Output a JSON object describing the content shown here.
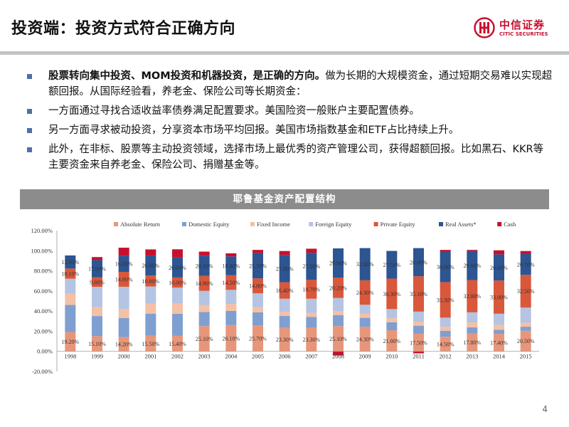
{
  "header": {
    "title": "投资端：投资方式符合正确方向",
    "logo_cn": "中信证券",
    "logo_en": "CITIC SECURITIES"
  },
  "bullets": [
    {
      "bold": "股票转向集中投资、MOM投资和机器投资，是正确的方向。",
      "text": "做为长期的大规模资金，通过短期交易难以实现超额回报。从国际经验看，养老金、保险公司等长期资金："
    },
    {
      "bold": "",
      "text": "一方面通过寻找合适收益率债券满足配置要求。美国险资一般账户主要配置债券。"
    },
    {
      "bold": "",
      "text": "另一方面寻求被动投资，分享资本市场平均回报。美国市场指数基金和ETF占比持续上升。"
    },
    {
      "bold": "",
      "text": "此外，在非标、股票等主动投资领域，选择市场上最优秀的资产管理公司，获得超额回报。比如黑石、KKR等主要资金来自养老金、保险公司、捐赠基金等。"
    }
  ],
  "chart_banner": "耶鲁基金资产配置结构",
  "page_number": "4",
  "chart_data": {
    "type": "bar",
    "stacked": true,
    "title": "",
    "xlabel": "",
    "ylabel": "",
    "ylim": [
      -20,
      120
    ],
    "yticks": [
      "-20.00%",
      "0.00%",
      "20.00%",
      "40.00%",
      "60.00%",
      "80.00%",
      "100.00%",
      "120.00%"
    ],
    "grid": false,
    "legend_position": "top",
    "categories": [
      "1998",
      "1999",
      "2000",
      "2001",
      "2002",
      "2003",
      "2004",
      "2005",
      "2006",
      "2007",
      "2008",
      "2009",
      "2010",
      "2011",
      "2012",
      "2013",
      "2014",
      "2015"
    ],
    "series": [
      {
        "name": "Absolute Return",
        "color": "#e8967a",
        "values": [
          19.2,
          15.1,
          14.2,
          15.5,
          15.4,
          25.1,
          26.1,
          25.7,
          23.3,
          23.3,
          25.1,
          24.3,
          21.0,
          17.5,
          14.5,
          17.8,
          17.4,
          20.5
        ]
      },
      {
        "name": "Domestic Equity",
        "color": "#7f9fd0",
        "values": [
          27,
          20,
          19,
          22,
          22,
          14,
          14,
          13,
          12,
          11,
          11,
          9,
          8,
          8,
          6,
          6,
          4,
          4
        ]
      },
      {
        "name": "Fixed Income",
        "color": "#f4c0a6",
        "values": [
          11,
          9,
          9,
          10,
          10,
          7,
          7,
          5,
          4,
          4,
          4,
          4,
          4,
          4,
          4,
          5,
          5,
          4
        ]
      },
      {
        "name": "Foreign Equity",
        "color": "#b4c4e2",
        "values": [
          15,
          20,
          22,
          17,
          16,
          14,
          14,
          14,
          13,
          14,
          13,
          9,
          9,
          10,
          9,
          10,
          11,
          15
        ]
      },
      {
        "name": "Private Equity",
        "color": "#d9573a",
        "values": [
          10.1,
          9.6,
          14.8,
          10.8,
          10.0,
          14.9,
          14.5,
          14.8,
          16.4,
          18.7,
          20.2,
          24.3,
          30.3,
          35.1,
          35.3,
          32.0,
          33.0,
          32.5
        ]
      },
      {
        "name": "Real Assets*",
        "color": "#2c5591",
        "values": [
          13,
          17,
          16,
          20,
          20,
          20.1,
          18.8,
          25.3,
          27,
          27,
          29,
          32,
          27.5,
          28,
          30,
          29,
          26,
          20.7
        ]
      },
      {
        "name": "Cash",
        "color": "#c8102e",
        "values": [
          0,
          3,
          8,
          6,
          8,
          4,
          3,
          3,
          4,
          4,
          -4,
          0,
          0,
          -2,
          2,
          1,
          4,
          3
        ]
      }
    ],
    "data_labels": [
      {
        "series": "Absolute Return",
        "values": [
          "19.20%",
          "15.10%",
          "14.20%",
          "15.50%",
          "15.40%",
          "25.10%",
          "26.10%",
          "25.70%",
          "23.30%",
          "23.30%",
          "25.10%",
          "24.30%",
          "21.00%",
          "17.50%",
          "14.50%",
          "17.80%",
          "17.40%",
          "20.50%"
        ]
      },
      {
        "series": "Private Equity",
        "values": [
          "10.10%",
          "9.60%",
          "14.80%",
          "10.80%",
          "10.00%",
          "14.90%",
          "14.50%",
          "14.80%",
          "16.40%",
          "18.70%",
          "20.20%",
          "24.30%",
          "30.30%",
          "35.10%",
          "35.30%",
          "32.00%",
          "33.00%",
          "32.50%"
        ]
      },
      {
        "series": "Real Assets*",
        "values": [
          "13.00%",
          "17.00%",
          "16.00%",
          "20.00%",
          "20.00%",
          "20.10%",
          "18.80%",
          "25.30%",
          "27.00%",
          "27.00%",
          "29.00%",
          "32.00%",
          "27.50%",
          "28.00%",
          "30.00%",
          "29.00%",
          "26.00%",
          "20.70%"
        ]
      }
    ]
  }
}
